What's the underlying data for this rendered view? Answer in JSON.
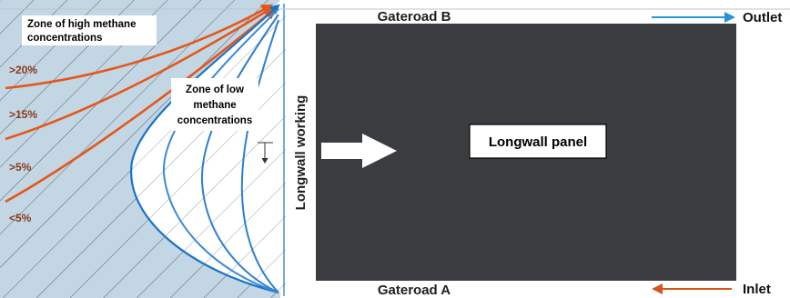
{
  "goaf": {
    "high_zone_label": [
      "Zone of high methane",
      "concentrations"
    ],
    "low_zone_label": [
      "Zone of low",
      "methane",
      "concentrations"
    ],
    "concentration_labels": [
      ">20%",
      ">15%",
      ">5%",
      "<5%"
    ]
  },
  "panel": {
    "working_label": "Longwall working",
    "panel_label": "Longwall panel"
  },
  "gateroads": {
    "top": "Gateroad B",
    "bottom": "Gateroad A"
  },
  "flows": {
    "outlet": "Outlet",
    "inlet": "Inlet"
  },
  "colors": {
    "goaf_fill": "#c3d6e3",
    "panel_fill": "#3a3c3f",
    "high_methane_lines": "#e4571b",
    "low_methane_lines": "#1a73c7",
    "outlet_arrow": "#2a93d5",
    "inlet_arrow": "#d4561c"
  }
}
